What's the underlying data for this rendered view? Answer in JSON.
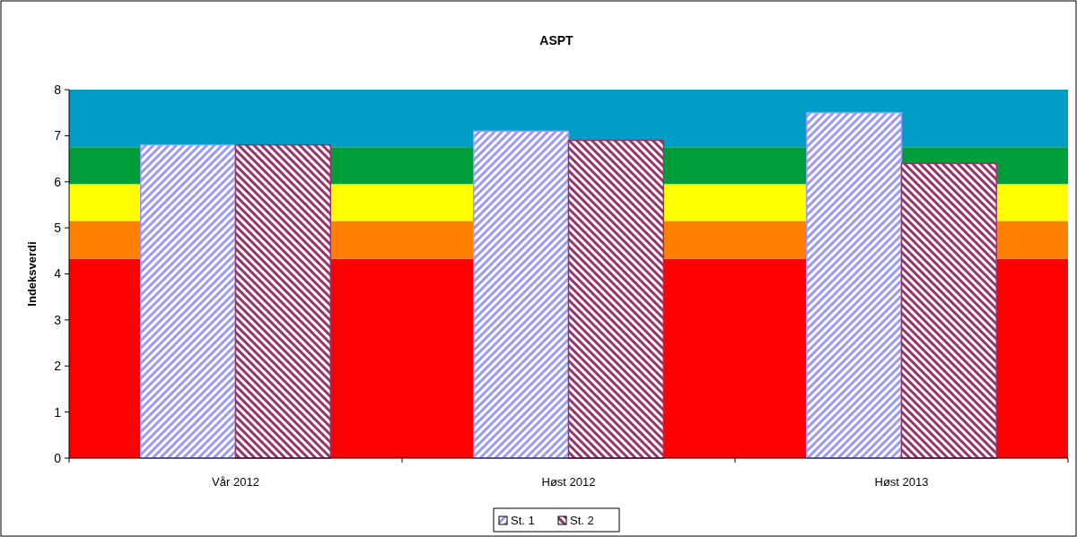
{
  "chart_data": {
    "type": "bar",
    "title": "ASPT",
    "ylabel": "Indeksverdi",
    "categories": [
      "Vår 2012",
      "Høst 2012",
      "Høst 2013"
    ],
    "series": [
      {
        "name": "St. 1",
        "color": "#9999ff",
        "values": [
          6.8,
          7.1,
          7.5
        ]
      },
      {
        "name": "St. 2",
        "color": "#993366",
        "values": [
          6.8,
          6.9,
          6.4
        ]
      }
    ],
    "ylim": [
      0,
      8
    ],
    "yticks": [
      0,
      1,
      2,
      3,
      4,
      5,
      6,
      7,
      8
    ],
    "grid": false,
    "legend": "bottom",
    "bands": [
      {
        "axis": "y",
        "from": 0,
        "to": 4.33,
        "color": "#ff0000"
      },
      {
        "axis": "y",
        "from": 4.33,
        "to": 5.15,
        "color": "#ff8000"
      },
      {
        "axis": "y",
        "from": 5.15,
        "to": 5.95,
        "color": "#ffff00"
      },
      {
        "axis": "y",
        "from": 5.95,
        "to": 6.75,
        "color": "#009e3a"
      },
      {
        "axis": "y",
        "from": 6.75,
        "to": 8,
        "color": "#009ec6"
      }
    ]
  }
}
